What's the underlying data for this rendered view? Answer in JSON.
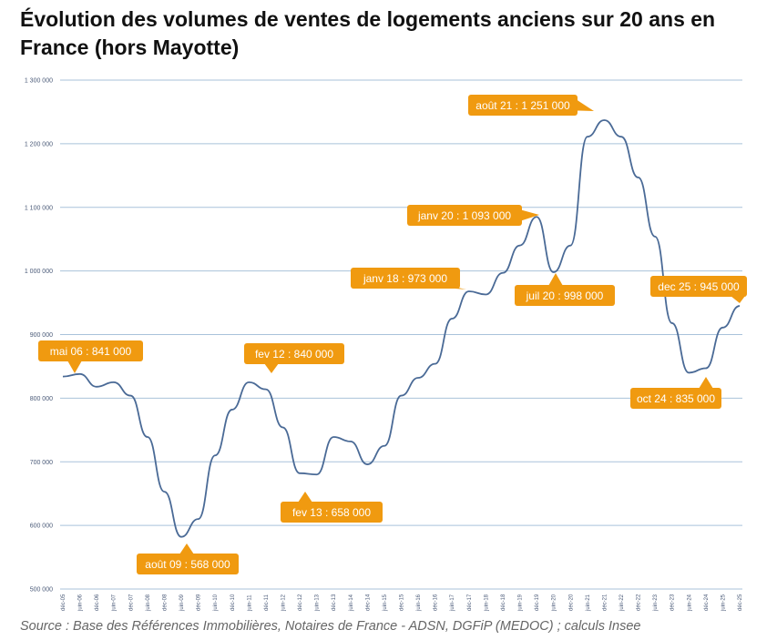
{
  "title": "Évolution des volumes de ventes de logements anciens sur 20 ans en France (hors Mayotte)",
  "source": "Source : Base des Références Immobilières, Notaires de France - ADSN, DGFiP (MEDOC) ; calculs Insee",
  "colors": {
    "line": "#4a6a96",
    "grid": "#a9c2da",
    "callout": "#f09a10"
  },
  "chart_data": {
    "type": "line",
    "title": "Évolution des volumes de ventes de logements anciens sur 20 ans en France (hors Mayotte)",
    "xlabel": "",
    "ylabel": "",
    "ylim": [
      500000,
      1300000
    ],
    "yticks": [
      500000,
      600000,
      700000,
      800000,
      900000,
      1000000,
      1100000,
      1200000,
      1300000
    ],
    "ytick_labels": [
      "500 000",
      "600 000",
      "700 000",
      "800 000",
      "900 000",
      "1 000 000",
      "1 100 000",
      "1 200 000",
      "1 300 000"
    ],
    "grid": "horizontal",
    "x": [
      "déc-05",
      "juin-06",
      "déc-06",
      "juin-07",
      "déc-07",
      "juin-08",
      "déc-08",
      "juin-09",
      "déc-09",
      "juin-10",
      "déc-10",
      "juin-11",
      "déc-11",
      "juin-12",
      "déc-12",
      "juin-13",
      "déc-13",
      "juin-14",
      "déc-14",
      "juin-15",
      "déc-15",
      "juin-16",
      "déc-16",
      "juin-17",
      "déc-17",
      "juin-18",
      "déc-18",
      "juin-19",
      "déc-19",
      "juin-20",
      "déc-20",
      "juin-21",
      "déc-21",
      "juin-22",
      "déc-22",
      "juin-23",
      "déc-23",
      "juin-24",
      "déc-24",
      "juin-25",
      "déc-25"
    ],
    "values": [
      834000,
      838000,
      818000,
      825000,
      804000,
      739000,
      653000,
      582000,
      610000,
      710000,
      782000,
      825000,
      814000,
      754000,
      682000,
      680000,
      739000,
      732000,
      696000,
      725000,
      804000,
      832000,
      854000,
      925000,
      968000,
      963000,
      997000,
      1040000,
      1085000,
      998000,
      1040000,
      1211000,
      1237000,
      1211000,
      1147000,
      1054000,
      918000,
      840000,
      847000,
      911000,
      945000
    ],
    "annotations": [
      {
        "label": "mai 06 : 841 000",
        "x": "mai-06",
        "value": 841000
      },
      {
        "label": "août 09 : 568 000",
        "x": "août-09",
        "value": 568000
      },
      {
        "label": "fev 12 : 840 000",
        "x": "fév-12",
        "value": 840000
      },
      {
        "label": "fev 13 : 658 000",
        "x": "fév-13",
        "value": 658000
      },
      {
        "label": "janv  18 : 973 000",
        "x": "janv-18",
        "value": 973000
      },
      {
        "label": "janv 20 : 1 093 000",
        "x": "janv-20",
        "value": 1093000
      },
      {
        "label": "juil 20 : 998 000",
        "x": "juil-20",
        "value": 998000
      },
      {
        "label": "août 21 : 1 251 000",
        "x": "août-21",
        "value": 1251000
      },
      {
        "label": "oct 24 : 835 000",
        "x": "oct-24",
        "value": 835000
      },
      {
        "label": "dec 25 : 945 000",
        "x": "déc-25",
        "value": 945000
      }
    ]
  }
}
